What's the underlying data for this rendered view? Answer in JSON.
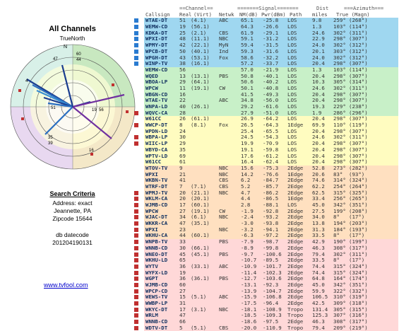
{
  "left": {
    "title": "All Channels",
    "subtitle": "TrueNorth",
    "north_label": "N",
    "criteria_title": "Search Criteria",
    "criteria_lines": [
      "Address: exact",
      "Jeannette, PA",
      "Zipcode 15644"
    ],
    "db_lines": [
      "db datecode",
      "201204190131"
    ],
    "link": "www.tvfool.com",
    "radar_labels": [
      "60",
      "44",
      "47",
      "4",
      "51",
      "19",
      "56",
      "16",
      "35",
      "39"
    ]
  },
  "header": {
    "group_channel": "==Channel==",
    "group_signal": "=======Signal=======",
    "group_dist": "Dist",
    "group_azimuth": "===Azimuth===",
    "callsign": "Callsign",
    "real": "Real",
    "virt": "(Virt)",
    "netwk": "Netwk",
    "nm": "NM(dB)",
    "pwr": "Pwr(dBm)",
    "path": "Path",
    "miles": "miles",
    "true_mag": "True (Magn)"
  },
  "rows": [
    {
      "cs": "WTAE-DT",
      "real": "51",
      "virt": "(4.1)",
      "net": "ABC",
      "nm": "65.1",
      "pwr": "-25.8",
      "path": "LOS",
      "mi": "9.8",
      "az": "259°",
      "mag": "(268°)",
      "color": "#9fd7f0",
      "dot": "#2a7bd0"
    },
    {
      "cs": "WEMW-CD",
      "real": "19",
      "virt": "(56.1)",
      "net": "",
      "nm": "64.3",
      "pwr": "-26.6",
      "path": "LOS",
      "mi": "1.3",
      "az": "103°",
      "mag": "(114°)",
      "color": "#9fd7f0",
      "dot": "#2a7bd0"
    },
    {
      "cs": "KDKA-DT",
      "real": "25",
      "virt": "(2.1)",
      "net": "CBS",
      "nm": "61.9",
      "pwr": "-29.1",
      "path": "LOS",
      "mi": "24.6",
      "az": "302°",
      "mag": "(311°)",
      "color": "#9fd7f0",
      "dot": "#2a7bd0"
    },
    {
      "cs": "WPXI-DT",
      "real": "48",
      "virt": "(11.1)",
      "net": "NBC",
      "nm": "59.1",
      "pwr": "-31.2",
      "path": "LOS",
      "mi": "22.9",
      "az": "298°",
      "mag": "(307°)",
      "color": "#9fd7f0",
      "dot": "#2a7bd0"
    },
    {
      "cs": "WPMY-DT",
      "real": "42",
      "virt": "(22.1)",
      "net": "MyN",
      "nm": "59.4",
      "pwr": "-31.5",
      "path": "LOS",
      "mi": "24.0",
      "az": "302°",
      "mag": "(312°)",
      "color": "#9fd7f0",
      "dot": "#2a7bd0"
    },
    {
      "cs": "WPCB-DT",
      "real": "50",
      "virt": "(40.1)",
      "net": "Ind",
      "nm": "59.3",
      "pwr": "-31.6",
      "path": "LOS",
      "mi": "20.1",
      "az": "303°",
      "mag": "(312°)",
      "color": "#9fd7f0",
      "dot": "#2a7bd0"
    },
    {
      "cs": "WPGH-DT",
      "real": "43",
      "virt": "(53.1)",
      "net": "Fox",
      "nm": "58.6",
      "pwr": "-32.2",
      "path": "LOS",
      "mi": "24.0",
      "az": "302°",
      "mag": "(312°)",
      "color": "#9fd7f0",
      "dot": "#2a7bd0"
    },
    {
      "cs": "WINP-TV",
      "real": "38",
      "virt": "(16.1)",
      "net": "",
      "nm": "57.2",
      "pwr": "-33.7",
      "path": "LOS",
      "mi": "20.4",
      "az": "298°",
      "mag": "(307°)",
      "color": "#9fd7f0",
      "dot": "#2a7bd0"
    },
    {
      "cs": "WEMW-CD",
      "real": "56",
      "virt": "",
      "net": "",
      "nm": "57.0",
      "pwr": "-21.9",
      "path": "LOS",
      "mi": "1.3",
      "az": "103°",
      "mag": "(114°)",
      "color": "#c8f0c8",
      "dot": ""
    },
    {
      "cs": "WQED",
      "real": "13",
      "virt": "(13.1)",
      "net": "PBS",
      "nm": "50.8",
      "pwr": "-40.1",
      "path": "LOS",
      "mi": "20.4",
      "az": "298°",
      "mag": "(307°)",
      "color": "#c8f0c8",
      "dot": ""
    },
    {
      "cs": "WBOA-LP",
      "real": "29",
      "virt": "(64.1)",
      "net": "",
      "nm": "50.6",
      "pwr": "-40.2",
      "path": "LOS",
      "mi": "10.3",
      "az": "305°",
      "mag": "(314°)",
      "color": "#c8f0c8",
      "dot": ""
    },
    {
      "cs": "WPCW",
      "real": "11",
      "virt": "(19.1)",
      "net": "CW",
      "nm": "50.1",
      "pwr": "-40.8",
      "path": "LOS",
      "mi": "24.6",
      "az": "302°",
      "mag": "(311°)",
      "color": "#c8f0c8",
      "dot": ""
    },
    {
      "cs": "WBGN-CD",
      "real": "16",
      "virt": "",
      "net": "",
      "nm": "41.5",
      "pwr": "-49.3",
      "path": "LOS",
      "mi": "20.4",
      "az": "298°",
      "mag": "(307°)",
      "color": "#c8f0c8",
      "dot": ""
    },
    {
      "cs": "WTAE-TV",
      "real": "22",
      "virt": "",
      "net": "ABC",
      "nm": "34.8",
      "pwr": "-56.0",
      "path": "LOS",
      "mi": "20.4",
      "az": "298°",
      "mag": "(307°)",
      "color": "#c8f0c8",
      "dot": ""
    },
    {
      "cs": "WNPA-LD",
      "real": "40",
      "virt": "(26.1)",
      "net": "",
      "nm": "29.2",
      "pwr": "-61.6",
      "path": "LOS",
      "mi": "19.3",
      "az": "229°",
      "mag": "(238°)",
      "color": "#c8f0c8",
      "dot": ""
    },
    {
      "cs": "WQVC-CA",
      "real": "28",
      "virt": "",
      "net": "",
      "nm": "27.9",
      "pwr": "-51.0",
      "path": "LOS",
      "mi": "1.9",
      "az": "286°",
      "mag": "(296°)",
      "color": "#c8f0c8",
      "dot": "#c03030"
    },
    {
      "cs": "W61CC",
      "real": "26",
      "virt": "(61.1)",
      "net": "",
      "nm": "26.9",
      "pwr": "-64.2",
      "path": "LOS",
      "mi": "20.4",
      "az": "298°",
      "mag": "(307°)",
      "color": "#fffcc0",
      "dot": ""
    },
    {
      "cs": "WWCP-DT",
      "real": "8",
      "virt": "(8.1)",
      "net": "Fox",
      "nm": "26.5",
      "pwr": "-64.3",
      "path": "1Edge",
      "mi": "69.9",
      "az": "110°",
      "mag": "(119°)",
      "color": "#fffcc0",
      "dot": "#c03030"
    },
    {
      "cs": "WPDN-LD",
      "real": "24",
      "virt": "",
      "net": "",
      "nm": "25.4",
      "pwr": "-65.5",
      "path": "LOS",
      "mi": "20.4",
      "az": "298°",
      "mag": "(307°)",
      "color": "#fffcc0",
      "dot": ""
    },
    {
      "cs": "WBPA-LP",
      "real": "30",
      "virt": "",
      "net": "",
      "nm": "24.5",
      "pwr": "-54.3",
      "path": "LOS",
      "mi": "24.6",
      "az": "302°",
      "mag": "(311°)",
      "color": "#fffcc0",
      "dot": "#c03030"
    },
    {
      "cs": "WIIC-LP",
      "real": "29",
      "virt": "",
      "net": "",
      "nm": "19.9",
      "pwr": "-70.9",
      "path": "LOS",
      "mi": "20.4",
      "az": "298°",
      "mag": "(307°)",
      "color": "#fffcc0",
      "dot": "#c03030"
    },
    {
      "cs": "WBYD-CA",
      "real": "35",
      "virt": "",
      "net": "",
      "nm": "19.1",
      "pwr": "-59.8",
      "path": "LOS",
      "mi": "20.4",
      "az": "298°",
      "mag": "(307°)",
      "color": "#fffcc0",
      "dot": ""
    },
    {
      "cs": "WPTV-LD",
      "real": "69",
      "virt": "",
      "net": "",
      "nm": "17.6",
      "pwr": "-61.2",
      "path": "LOS",
      "mi": "20.4",
      "az": "298°",
      "mag": "(307°)",
      "color": "#fffcc0",
      "dot": ""
    },
    {
      "cs": "W61CC",
      "real": "61",
      "virt": "",
      "net": "",
      "nm": "16.4",
      "pwr": "-62.4",
      "path": "LOS",
      "mi": "20.4",
      "az": "298°",
      "mag": "(307°)",
      "color": "#fffcc0",
      "dot": ""
    },
    {
      "cs": "WTOV-TV",
      "real": "9",
      "virt": "",
      "net": "NBC",
      "nm": "15.6",
      "pwr": "-75.3",
      "path": "2Edge",
      "mi": "52.8",
      "az": "273°",
      "mag": "(282°)",
      "color": "#ffe0c0",
      "dot": ""
    },
    {
      "cs": "WPXI",
      "real": "21",
      "virt": "",
      "net": "NBC",
      "nm": "14.2",
      "pwr": "-76.6",
      "path": "1Edge",
      "mi": "20.6",
      "az": "83°",
      "mag": "(93°)",
      "color": "#ffe0c0",
      "dot": ""
    },
    {
      "cs": "WKBN-TV",
      "real": "41",
      "virt": "",
      "net": "CBS",
      "nm": "6.2",
      "pwr": "-84.7",
      "path": "2Edge",
      "mi": "74.6",
      "az": "314°",
      "mag": "(324°)",
      "color": "#ffe0c0",
      "dot": ""
    },
    {
      "cs": "WTRF-DT",
      "real": "7",
      "virt": "(7.1)",
      "net": "CBS",
      "nm": "5.2",
      "pwr": "-85.7",
      "path": "2Edge",
      "mi": "62.2",
      "az": "254°",
      "mag": "(264°)",
      "color": "#ffe0c0",
      "dot": ""
    },
    {
      "cs": "WPMJ-TV",
      "real": "20",
      "virt": "(21.1)",
      "net": "NBC",
      "nm": "4.7",
      "pwr": "-86.2",
      "path": "2Edge",
      "mi": "62.5",
      "az": "315°",
      "mag": "(325°)",
      "color": "#ffe0c0",
      "dot": "#c03030"
    },
    {
      "cs": "WKLM-CA",
      "real": "20",
      "virt": "(20.1)",
      "net": "",
      "nm": "4.4",
      "pwr": "-86.5",
      "path": "1Edge",
      "mi": "33.4",
      "az": "256°",
      "mag": "(265°)",
      "color": "#ffe0c0",
      "dot": "#c03030"
    },
    {
      "cs": "WJMB-CD",
      "real": "17",
      "virt": "(60.1)",
      "net": "",
      "nm": "2.8",
      "pwr": "-88.1",
      "path": "LOS",
      "mi": "45.0",
      "az": "342°",
      "mag": "(351°)",
      "color": "#ffe0c0",
      "dot": "#c03030"
    },
    {
      "cs": "WPCW",
      "real": "27",
      "virt": "(19.1)",
      "net": "CW",
      "nm": "-1.9",
      "pwr": "-92.8",
      "path": "2Edge",
      "mi": "27.5",
      "az": "199°",
      "mag": "(208°)",
      "color": "#ffe0c0",
      "dot": "#c03030"
    },
    {
      "cs": "WJAC-DT",
      "real": "34",
      "virt": "(6.1)",
      "net": "NBC",
      "nm": "-2.4",
      "pwr": "-93.2",
      "path": "2Edge",
      "mi": "34.0",
      "az": "8°",
      "mag": "(17°)",
      "color": "#ffe0c0",
      "dot": "#c03030"
    },
    {
      "cs": "WKKR-CA",
      "real": "47",
      "virt": "(35.1)",
      "net": "",
      "nm": "-3.0",
      "pwr": "-93.8",
      "path": "2Edge",
      "mi": "13.8",
      "az": "194°",
      "mag": "(203°)",
      "color": "#ffe0c0",
      "dot": "#c03030"
    },
    {
      "cs": "WPXI",
      "real": "23",
      "virt": "",
      "net": "NBC",
      "nm": "-3.2",
      "pwr": "-94.1",
      "path": "2Edge",
      "mi": "31.3",
      "az": "184°",
      "mag": "(193°)",
      "color": "#ffe0c0",
      "dot": "#c03030"
    },
    {
      "cs": "WKHU-CA",
      "real": "44",
      "virt": "(60.1)",
      "net": "",
      "nm": "-6.3",
      "pwr": "-97.2",
      "path": "2Edge",
      "mi": "33.5",
      "az": "8°",
      "mag": "(17°)",
      "color": "#ffe0c0",
      "dot": "#c03030"
    },
    {
      "cs": "WNPB-TV",
      "real": "33",
      "virt": "",
      "net": "PBS",
      "nm": "-7.9",
      "pwr": "-98.7",
      "path": "2Edge",
      "mi": "42.9",
      "az": "190°",
      "mag": "(199°)",
      "color": "#ffd8d8",
      "dot": "#c03030"
    },
    {
      "cs": "WNNB-CD",
      "real": "30",
      "virt": "(66.1)",
      "net": "",
      "nm": "-8.9",
      "pwr": "-99.8",
      "path": "2Edge",
      "mi": "46.3",
      "az": "308°",
      "mag": "(317°)",
      "color": "#ffd8d8",
      "dot": "#c03030"
    },
    {
      "cs": "WNEO-DT",
      "real": "45",
      "virt": "(45.1)",
      "net": "PBS",
      "nm": "-9.7",
      "pwr": "-100.6",
      "path": "2Edge",
      "mi": "79.4",
      "az": "302°",
      "mag": "(311°)",
      "color": "#ffd8d8",
      "dot": "#c03030"
    },
    {
      "cs": "WKHU-LD",
      "real": "65",
      "virt": "",
      "net": "",
      "nm": "-10.7",
      "pwr": "-89.5",
      "path": "2Edge",
      "mi": "33.5",
      "az": "8°",
      "mag": "(17°)",
      "color": "#ffd8d8",
      "dot": "#c03030"
    },
    {
      "cs": "WYTV",
      "real": "36",
      "virt": "(33.1)",
      "net": "ABC",
      "nm": "-10.9",
      "pwr": "-101.7",
      "path": "2Edge",
      "mi": "74.4",
      "az": "315°",
      "mag": "(324°)",
      "color": "#ffd8d8",
      "dot": "#c03030"
    },
    {
      "cs": "WYFX-LD",
      "real": "19",
      "virt": "",
      "net": "",
      "nm": "-11.4",
      "pwr": "-102.3",
      "path": "2Edge",
      "mi": "74.4",
      "az": "315°",
      "mag": "(324°)",
      "color": "#ffd8d8",
      "dot": "#c03030"
    },
    {
      "cs": "WGPT",
      "real": "36",
      "virt": "(36.1)",
      "net": "PBS",
      "nm": "-12.7",
      "pwr": "-103.6",
      "path": "2Edge",
      "mi": "64.8",
      "az": "164°",
      "mag": "(174°)",
      "color": "#ffd8d8",
      "dot": "#c03030"
    },
    {
      "cs": "WJMB-CD",
      "real": "60",
      "virt": "",
      "net": "",
      "nm": "-13.1",
      "pwr": "-92.3",
      "path": "2Edge",
      "mi": "45.0",
      "az": "342°",
      "mag": "(351°)",
      "color": "#ffd8d8",
      "dot": "#c03030"
    },
    {
      "cs": "WPCP-CD",
      "real": "27",
      "virt": "",
      "net": "",
      "nm": "-13.9",
      "pwr": "-104.7",
      "path": "2Edge",
      "mi": "59.9",
      "az": "322°",
      "mag": "(332°)",
      "color": "#ffd8d8",
      "dot": "#c03030"
    },
    {
      "cs": "WEWS-TV",
      "real": "15",
      "virt": "(5.1)",
      "net": "ABC",
      "nm": "-15.9",
      "pwr": "-106.8",
      "path": "2Edge",
      "mi": "106.5",
      "az": "310°",
      "mag": "(319°)",
      "color": "#ffd8d8",
      "dot": "#c03030"
    },
    {
      "cs": "WWBP-LP",
      "real": "31",
      "virt": "",
      "net": "",
      "nm": "-17.5",
      "pwr": "-96.4",
      "path": "2Edge",
      "mi": "42.5",
      "az": "309°",
      "mag": "(318°)",
      "color": "#ffd8d8",
      "dot": "#c03030"
    },
    {
      "cs": "WKYC-DT",
      "real": "17",
      "virt": "(3.1)",
      "net": "NBC",
      "nm": "-18.1",
      "pwr": "-108.9",
      "path": "Tropo",
      "mi": "131.4",
      "az": "305°",
      "mag": "(315°)",
      "color": "#ffd8d8",
      "dot": "#c03030"
    },
    {
      "cs": "WRLM",
      "real": "47",
      "virt": "",
      "net": "",
      "nm": "-18.5",
      "pwr": "-109.3",
      "path": "Tropo",
      "mi": "125.3",
      "az": "307°",
      "mag": "(316°)",
      "color": "#ffd8d8",
      "dot": "#c03030"
    },
    {
      "cs": "WNNB-CD",
      "real": "66",
      "virt": "",
      "net": "",
      "nm": "-18.6",
      "pwr": "-97.5",
      "path": "2Edge",
      "mi": "46.3",
      "az": "308°",
      "mag": "(317°)",
      "color": "#ffd8d8",
      "dot": "#c03030"
    },
    {
      "cs": "WDTV-DT",
      "real": "5",
      "virt": "(5.1)",
      "net": "CBS",
      "nm": "-20.0",
      "pwr": "-110.9",
      "path": "Tropo",
      "mi": "79.4",
      "az": "209°",
      "mag": "(219°)",
      "color": "#ffd8d8",
      "dot": "#c03030"
    }
  ]
}
